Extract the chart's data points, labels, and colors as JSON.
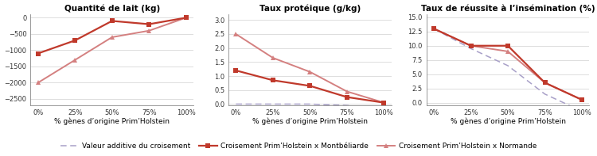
{
  "x": [
    0,
    25,
    50,
    75,
    100
  ],
  "x_labels": [
    "0%",
    "25%",
    "50%",
    "75%",
    "100%"
  ],
  "lait_mont": [
    -1100,
    -700,
    -100,
    -200,
    0
  ],
  "lait_norm": [
    -2000,
    -1300,
    -600,
    -400,
    0
  ],
  "lait_ylim": [
    -2700,
    100
  ],
  "lait_yticks": [
    0,
    -500,
    -1000,
    -1500,
    -2000,
    -2500
  ],
  "lait_title": "Quantité de lait (kg)",
  "prot_mont": [
    1.2,
    0.85,
    0.65,
    0.25,
    0.05
  ],
  "prot_norm": [
    2.5,
    1.65,
    1.15,
    0.45,
    0.05
  ],
  "prot_additive": [
    0.0,
    0.0,
    0.0,
    -0.05,
    -0.15
  ],
  "prot_ylim": [
    -0.05,
    3.2
  ],
  "prot_yticks": [
    0,
    0.5,
    1,
    1.5,
    2,
    2.5,
    3
  ],
  "prot_title": "Taux protéique (g/kg)",
  "ins_mont": [
    13.0,
    10.0,
    10.0,
    3.5,
    0.5
  ],
  "ins_norm": [
    13.0,
    10.0,
    9.0,
    3.5,
    0.5
  ],
  "ins_additive": [
    13.0,
    9.5,
    6.5,
    1.5,
    -1.5
  ],
  "ins_ylim": [
    -0.5,
    15.5
  ],
  "ins_yticks": [
    0,
    2.5,
    5,
    7.5,
    10,
    12.5,
    15
  ],
  "ins_title": "Taux de réussite à l’insémination (%)",
  "color_mont": "#c0392b",
  "color_norm": "#d48080",
  "color_additive": "#a8a0c8",
  "xlabel": "% gènes d’origine Prim’Holstein",
  "legend_additive": "Valeur additive du croisement",
  "legend_mont": "Croisement Prim’Holstein x Montbéliarde",
  "legend_norm": "Croisement Prim’Holstein x Normande",
  "title_fontsize": 7.5,
  "axis_fontsize": 6.5,
  "tick_fontsize": 6,
  "legend_fontsize": 6.5
}
